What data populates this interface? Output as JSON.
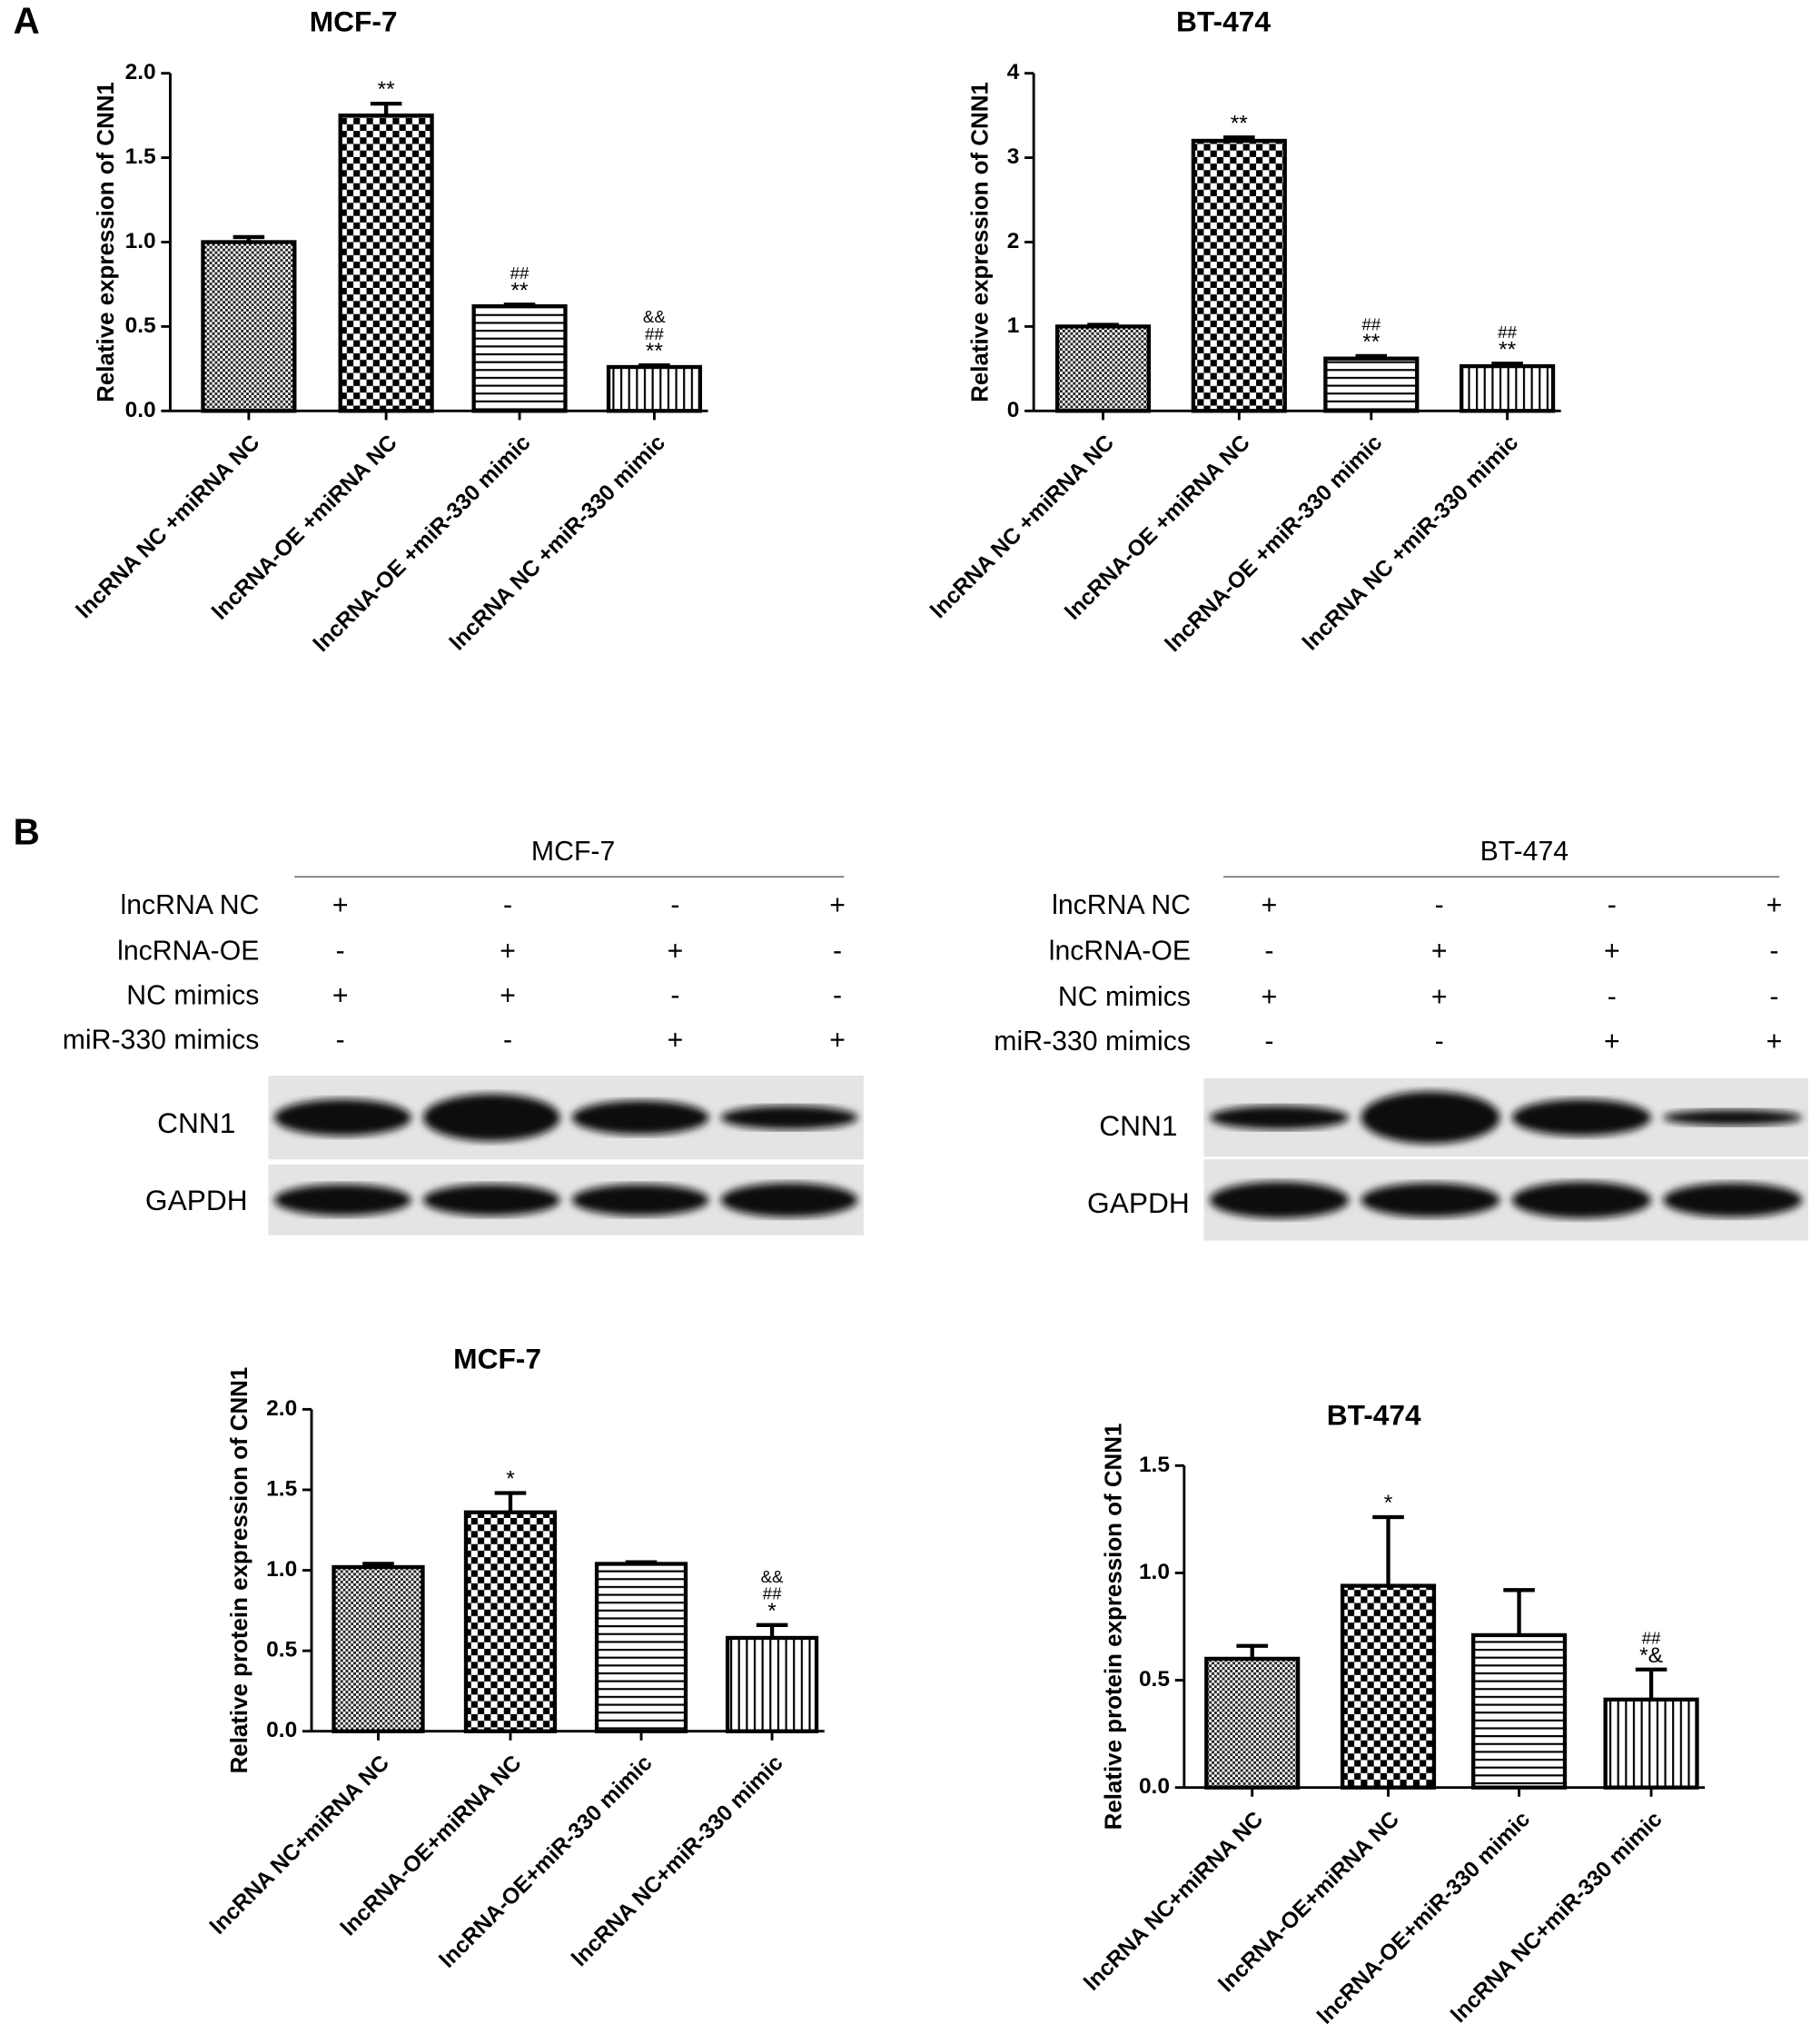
{
  "panels": {
    "a": "A",
    "b": "B"
  },
  "chart_data": [
    {
      "type": "bar",
      "title": "MCF-7",
      "y_label": "Relative expression of CNN1",
      "categories": [
        "lncRNA NC +miRNA NC",
        "lncRNA-OE +miRNA NC",
        "lncRNA-OE +miR-330 mimic",
        "lncRNA NC +miR-330 mimic"
      ],
      "values": [
        1.0,
        1.75,
        0.62,
        0.26
      ],
      "errors": [
        0.03,
        0.07,
        0.01,
        0.01
      ],
      "annotations": [
        [],
        [
          "**"
        ],
        [
          "##",
          "**"
        ],
        [
          "&&",
          "##",
          "**"
        ]
      ],
      "patterns": [
        "fine-dots",
        "checker",
        "horizontal",
        "vertical"
      ],
      "color": "#000000",
      "ylim": [
        0,
        2
      ],
      "yticks": [
        {
          "value": 0,
          "label": "0.0"
        },
        0.5,
        {
          "value": 1,
          "label": "1.0"
        },
        1.5,
        {
          "value": 2,
          "label": "2.0"
        }
      ]
    },
    {
      "type": "bar",
      "title": "BT-474",
      "y_label": "Relative expression of CNN1",
      "categories": [
        "lncRNA NC +miRNA NC",
        "lncRNA-OE +miRNA NC",
        "lncRNA-OE +miR-330 mimic",
        "lncRNA NC +miR-330 mimic"
      ],
      "values": [
        1.0,
        3.2,
        0.62,
        0.53
      ],
      "errors": [
        0.02,
        0.04,
        0.03,
        0.03
      ],
      "annotations": [
        [],
        [
          "**"
        ],
        [
          "##",
          "**"
        ],
        [
          "##",
          "**"
        ]
      ],
      "patterns": [
        "fine-dots",
        "checker",
        "horizontal",
        "vertical"
      ],
      "color": "#000000",
      "ylim": [
        0,
        4
      ],
      "yticks": [
        0,
        1,
        2,
        3,
        4
      ]
    },
    {
      "type": "bar",
      "title": "MCF-7",
      "y_label": "Relative protein expression of CNN1",
      "categories": [
        "lncRNA NC+miRNA NC",
        "lncRNA-OE+miRNA NC",
        "lncRNA-OE+miR-330 mimic",
        "lncRNA NC+miR-330 mimic"
      ],
      "values": [
        1.02,
        1.36,
        1.04,
        0.58
      ],
      "errors": [
        0.02,
        0.12,
        0.01,
        0.08
      ],
      "annotations": [
        [],
        [
          "*"
        ],
        [],
        [
          "&&",
          "##",
          "*"
        ]
      ],
      "patterns": [
        "fine-dots",
        "checker",
        "horizontal",
        "vertical"
      ],
      "color": "#000000",
      "ylim": [
        0,
        2
      ],
      "yticks": [
        {
          "value": 0,
          "label": "0.0"
        },
        0.5,
        {
          "value": 1,
          "label": "1.0"
        },
        1.5,
        {
          "value": 2,
          "label": "2.0"
        }
      ]
    },
    {
      "type": "bar",
      "title": "BT-474",
      "y_label": "Relative protein expression of CNN1",
      "categories": [
        "lncRNA NC+miRNA NC",
        "lncRNA-OE+miRNA NC",
        "lncRNA-OE+miR-330 mimic",
        "lncRNA NC+miR-330 mimic"
      ],
      "values": [
        0.6,
        0.94,
        0.71,
        0.41
      ],
      "errors": [
        0.06,
        0.32,
        0.21,
        0.14
      ],
      "annotations": [
        [],
        [
          "*"
        ],
        [],
        [
          "##",
          "*&"
        ]
      ],
      "patterns": [
        "fine-dots",
        "checker",
        "horizontal",
        "vertical"
      ],
      "color": "#000000",
      "ylim": [
        0,
        1.5
      ],
      "yticks": [
        {
          "value": 0,
          "label": "0.0"
        },
        0.5,
        {
          "value": 1,
          "label": "1.0"
        },
        1.5
      ]
    }
  ],
  "blots": [
    {
      "cell_line": "MCF-7",
      "rows": [
        {
          "label": "lncRNA NC",
          "signs": [
            "+",
            "-",
            "-",
            "+"
          ]
        },
        {
          "label": "lncRNA-OE",
          "signs": [
            "-",
            "+",
            "+",
            "-"
          ]
        },
        {
          "label": "NC mimics",
          "signs": [
            "+",
            "+",
            "-",
            "-"
          ]
        },
        {
          "label": "miR-330 mimics",
          "signs": [
            "-",
            "-",
            "+",
            "+"
          ]
        }
      ],
      "bands": [
        "CNN1",
        "GAPDH"
      ]
    },
    {
      "cell_line": "BT-474",
      "rows": [
        {
          "label": "lncRNA NC",
          "signs": [
            "+",
            "-",
            "-",
            "+"
          ]
        },
        {
          "label": "lncRNA-OE",
          "signs": [
            "-",
            "+",
            "+",
            "-"
          ]
        },
        {
          "label": "NC mimics",
          "signs": [
            "+",
            "+",
            "-",
            "-"
          ]
        },
        {
          "label": "miR-330 mimics",
          "signs": [
            "-",
            "-",
            "+",
            "+"
          ]
        }
      ],
      "bands": [
        "CNN1",
        "GAPDH"
      ]
    }
  ]
}
